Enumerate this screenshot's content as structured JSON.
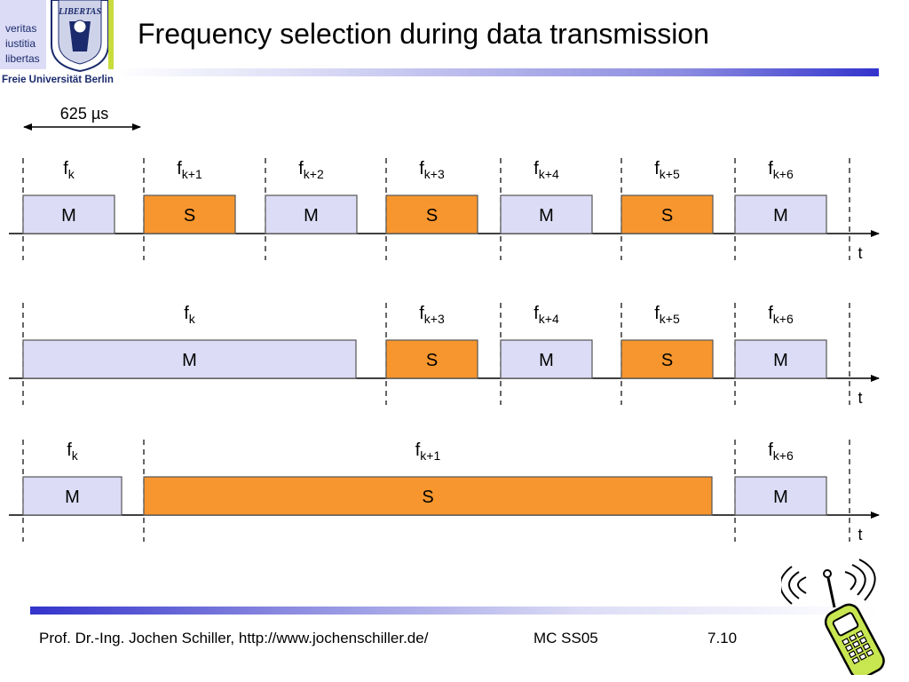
{
  "header": {
    "title": "Frequency selection during data transmission",
    "logo": {
      "lines": [
        "veritas",
        "iustitia",
        "libertas"
      ],
      "seal_text": "LIBERTAS",
      "university": "Freie Universität Berlin"
    }
  },
  "diagram": {
    "duration_label": "625 µs",
    "time_axis_label": "t",
    "colors": {
      "master_fill": "#dcdcf6",
      "slave_fill": "#f7962e",
      "border": "#555555"
    },
    "rows": [
      {
        "slots": [
          {
            "type": "M",
            "start": 0,
            "span": 1,
            "freq": "k"
          },
          {
            "type": "S",
            "start": 1,
            "span": 1,
            "freq": "k+1"
          },
          {
            "type": "M",
            "start": 2,
            "span": 1,
            "freq": "k+2"
          },
          {
            "type": "S",
            "start": 3,
            "span": 1,
            "freq": "k+3"
          },
          {
            "type": "M",
            "start": 4,
            "span": 1,
            "freq": "k+4"
          },
          {
            "type": "S",
            "start": 5,
            "span": 1,
            "freq": "k+5"
          },
          {
            "type": "M",
            "start": 6,
            "span": 1,
            "freq": "k+6"
          }
        ]
      },
      {
        "slots": [
          {
            "type": "M",
            "start": 0,
            "span": 3,
            "freq": "k"
          },
          {
            "type": "S",
            "start": 3,
            "span": 1,
            "freq": "k+3"
          },
          {
            "type": "M",
            "start": 4,
            "span": 1,
            "freq": "k+4"
          },
          {
            "type": "S",
            "start": 5,
            "span": 1,
            "freq": "k+5"
          },
          {
            "type": "M",
            "start": 6,
            "span": 1,
            "freq": "k+6"
          }
        ]
      },
      {
        "slots": [
          {
            "type": "M",
            "start": 0,
            "span": 1,
            "freq": "k"
          },
          {
            "type": "S",
            "start": 1,
            "span": 5,
            "freq": "k+1"
          },
          {
            "type": "M",
            "start": 6,
            "span": 1,
            "freq": "k+6"
          }
        ]
      }
    ]
  },
  "footer": {
    "author": "Prof. Dr.-Ing. Jochen Schiller, http://www.jochenschiller.de/",
    "course": "MC SS05",
    "page": "7.10"
  }
}
